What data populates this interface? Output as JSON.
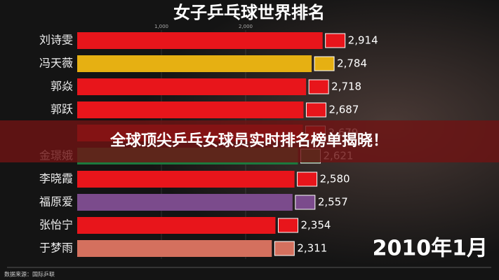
{
  "chart_data": {
    "type": "bar",
    "orientation": "horizontal",
    "title": "女子乒乓球世界排名",
    "categories": [
      "刘诗雯",
      "冯天薇",
      "郭焱",
      "郭跃",
      null,
      "金璟娥",
      "李晓霞",
      "福原爱",
      "张怡宁",
      "于梦雨"
    ],
    "values": [
      2914,
      2784,
      2718,
      2687,
      2679,
      2621,
      2580,
      2557,
      2354,
      2311
    ],
    "value_labels": [
      "2,914",
      "2,784",
      "2,718",
      "2,687",
      "2,679",
      "2,621",
      "2,580",
      "2,557",
      "2,354",
      "2,311"
    ],
    "colors": [
      "#e8151b",
      "#e6b012",
      "#e8151b",
      "#e8151b",
      "#e8151b",
      "#1b7a3e",
      "#e8151b",
      "#7b4b8c",
      "#e8151b",
      "#d4705e"
    ],
    "xlim": [
      0,
      5000
    ],
    "xticks": [
      {
        "value": 1000,
        "label": "1,000"
      },
      {
        "value": 2000,
        "label": "2,000"
      }
    ],
    "grid": true,
    "date": "2010年1月",
    "source": "数据来源：国际乒联",
    "banner": "全球顶尖乒乓女球员实时排名榜单揭晓！"
  }
}
